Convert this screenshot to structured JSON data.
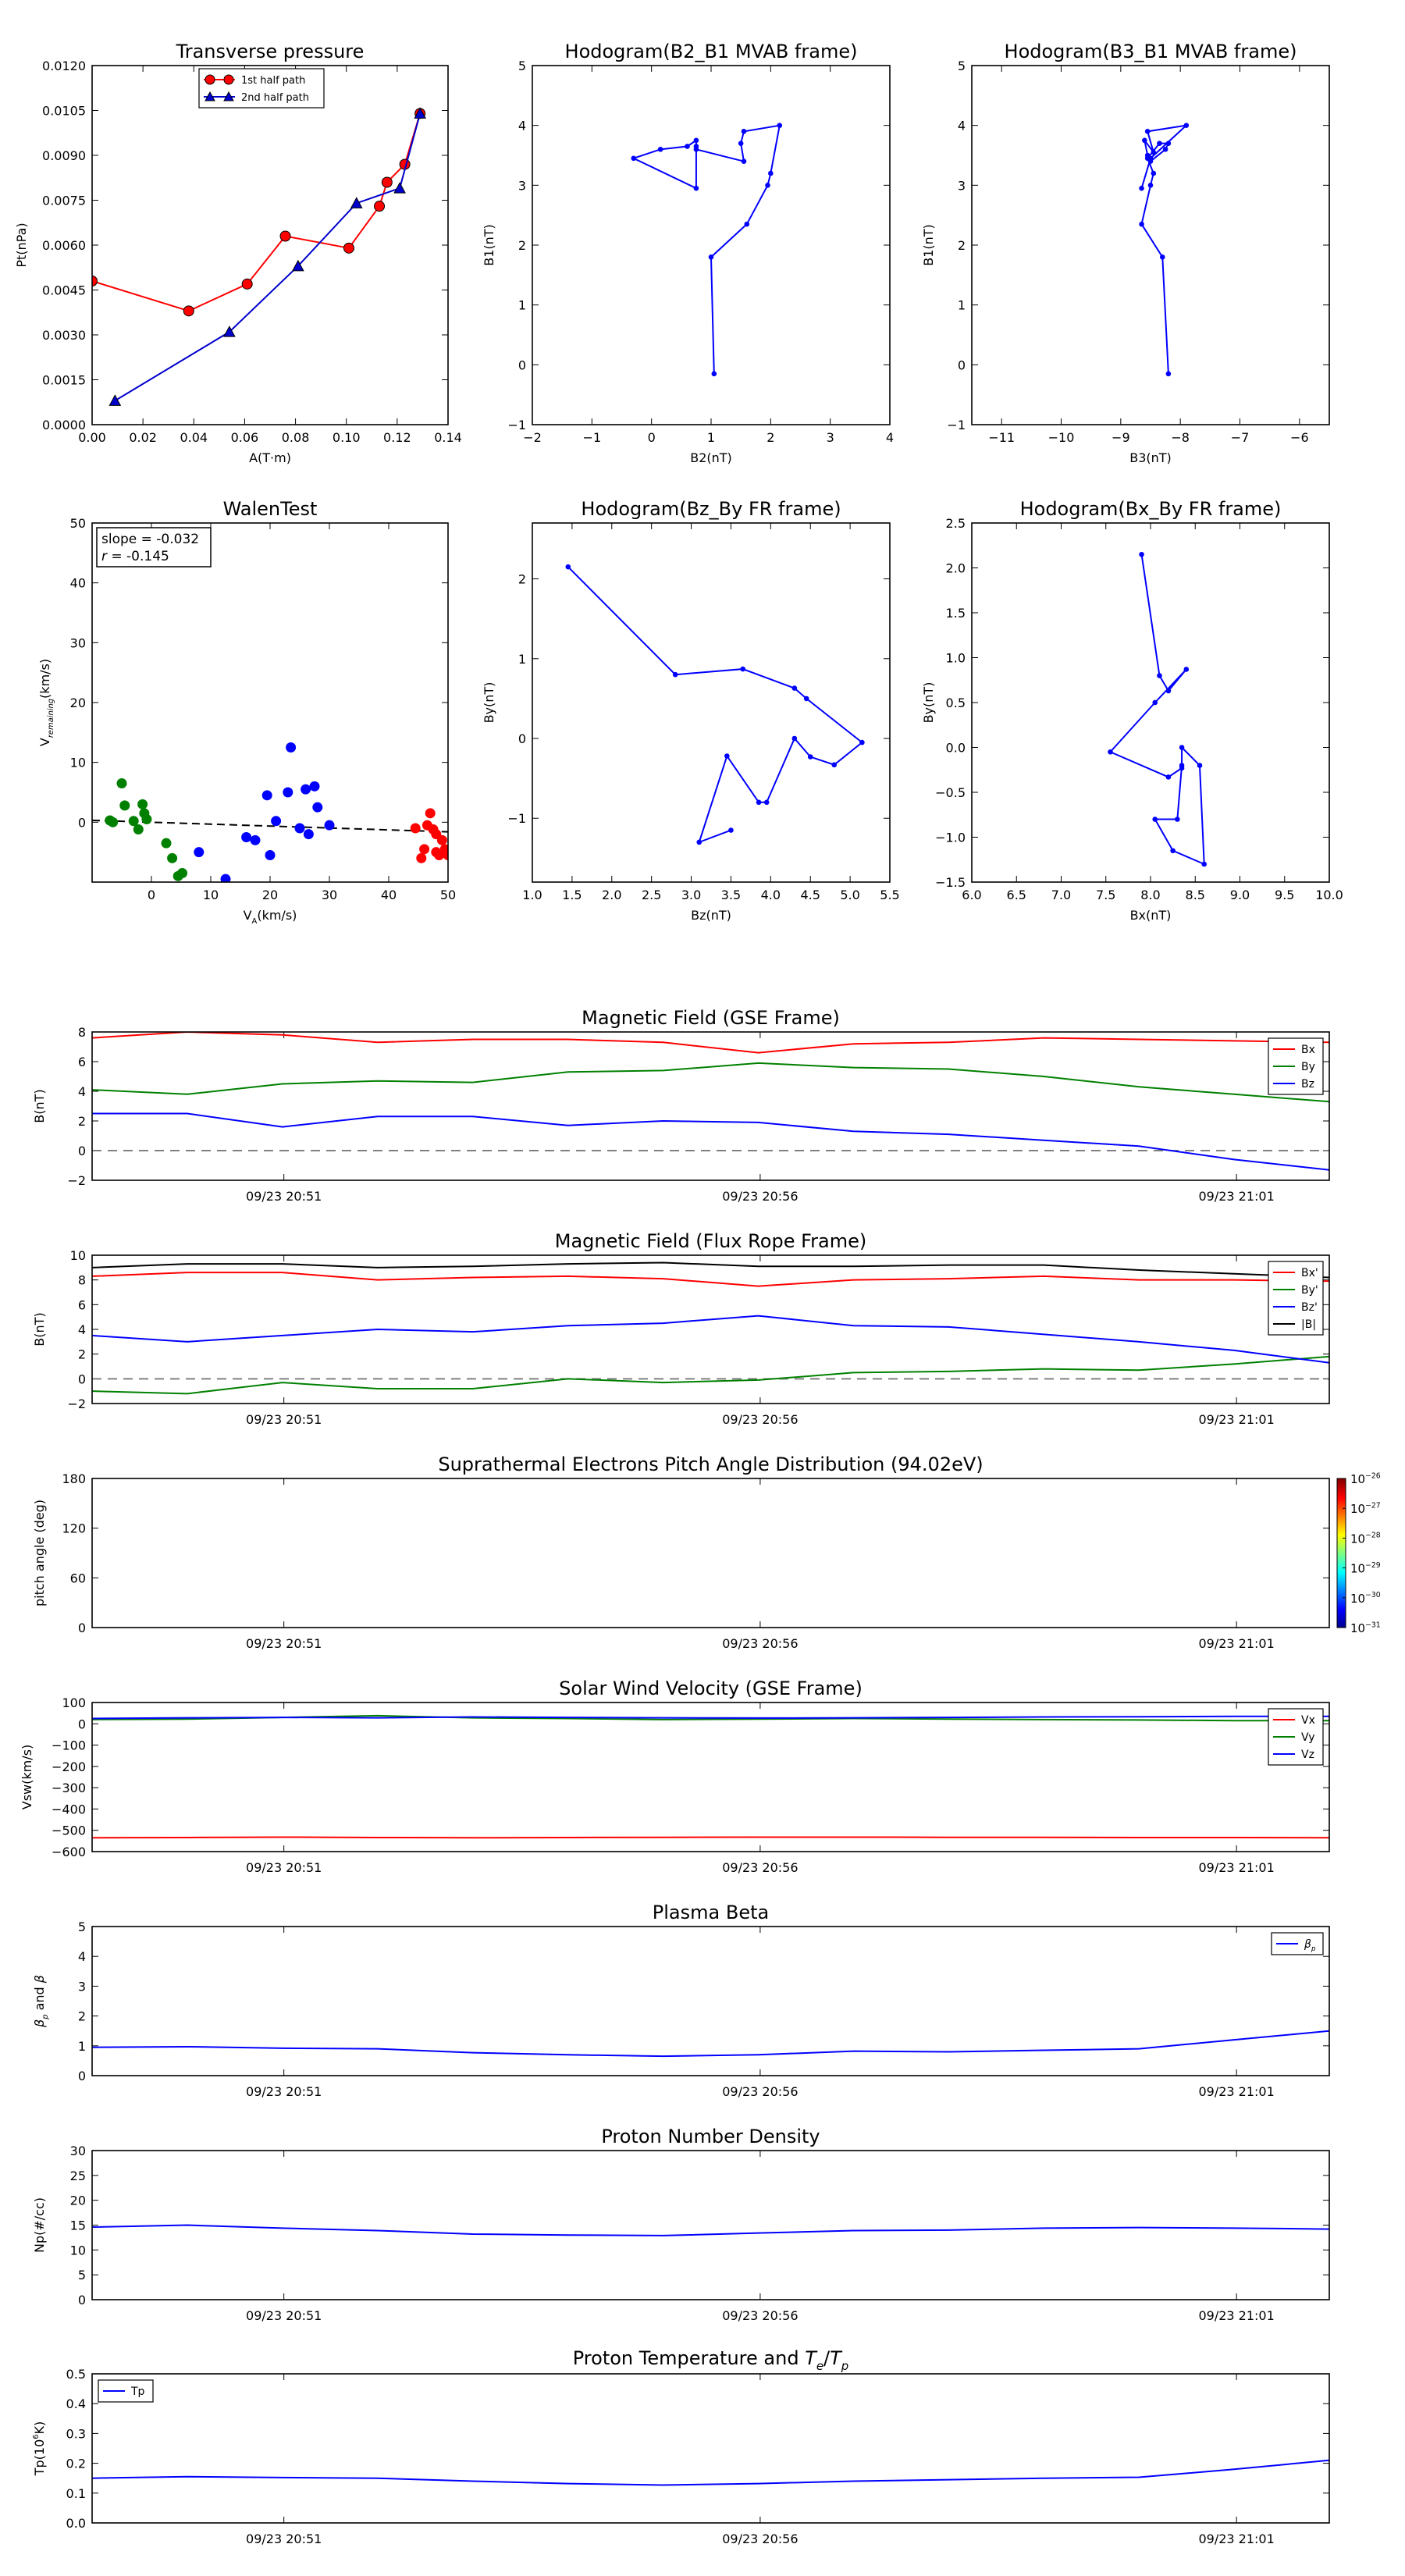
{
  "time_ticks": [
    "09/23 20:51",
    "09/23 20:56",
    "09/23 21:01"
  ],
  "chart_data": [
    {
      "id": "transverse_pressure",
      "type": "line",
      "title": "Transverse pressure",
      "xlabel": "A(T·m)",
      "ylabel": "Pt(nPa)",
      "xlim": [
        0,
        0.14
      ],
      "ylim": [
        0,
        0.012
      ],
      "xticks": [
        "0.00",
        "0.02",
        "0.04",
        "0.06",
        "0.08",
        "0.10",
        "0.12",
        "0.14"
      ],
      "yticks": [
        "0.0000",
        "0.0015",
        "0.0030",
        "0.0045",
        "0.0060",
        "0.0075",
        "0.0090",
        "0.0105",
        "0.0120"
      ],
      "xtick_vals": [
        0,
        0.02,
        0.04,
        0.06,
        0.08,
        0.1,
        0.12,
        0.14
      ],
      "ytick_vals": [
        0,
        0.0015,
        0.003,
        0.0045,
        0.006,
        0.0075,
        0.009,
        0.0105,
        0.012
      ],
      "legend": "top-center",
      "series": [
        {
          "name": "1st half path",
          "color": "#ff0000",
          "marker": "circle",
          "x": [
            0.0,
            0.038,
            0.061,
            0.076,
            0.101,
            0.113,
            0.116,
            0.123,
            0.129
          ],
          "y": [
            0.0048,
            0.0038,
            0.0047,
            0.0063,
            0.0059,
            0.0073,
            0.0081,
            0.0087,
            0.0104
          ]
        },
        {
          "name": "2nd half path",
          "color": "#0000cc",
          "marker": "triangle",
          "x": [
            0.009,
            0.054,
            0.081,
            0.104,
            0.121,
            0.129
          ],
          "y": [
            0.0008,
            0.0031,
            0.0053,
            0.0074,
            0.0079,
            0.0104
          ]
        }
      ]
    },
    {
      "id": "hodo_b2_b1",
      "type": "line",
      "title": "Hodogram(B2_B1 MVAB frame)",
      "xlabel": "B2(nT)",
      "ylabel": "B1(nT)",
      "xlim": [
        -2,
        4
      ],
      "ylim": [
        -1,
        5
      ],
      "xticks": [
        "−2",
        "−1",
        "0",
        "1",
        "2",
        "3",
        "4"
      ],
      "yticks": [
        "−1",
        "0",
        "1",
        "2",
        "3",
        "4",
        "5"
      ],
      "xtick_vals": [
        -2,
        -1,
        0,
        1,
        2,
        3,
        4
      ],
      "ytick_vals": [
        -1,
        0,
        1,
        2,
        3,
        4,
        5
      ],
      "series": [
        {
          "name": "",
          "color": "#0000ff",
          "marker": "dot",
          "x": [
            1.05,
            1.0,
            1.6,
            1.95,
            2.0,
            2.15,
            1.55,
            1.5,
            1.55,
            0.75,
            0.75,
            0.6,
            0.15,
            -0.3,
            0.75,
            0.75
          ],
          "y": [
            -0.15,
            1.8,
            2.35,
            3.0,
            3.2,
            4.0,
            3.9,
            3.7,
            3.4,
            3.6,
            3.75,
            3.65,
            3.6,
            3.45,
            2.95,
            3.65
          ]
        }
      ]
    },
    {
      "id": "hodo_b3_b1",
      "type": "line",
      "title": "Hodogram(B3_B1 MVAB frame)",
      "xlabel": "B3(nT)",
      "ylabel": "B1(nT)",
      "xlim": [
        -11.5,
        -5.5
      ],
      "ylim": [
        -1,
        5
      ],
      "xticks": [
        "−11",
        "−10",
        "−9",
        "−8",
        "−7",
        "−6"
      ],
      "yticks": [
        "−1",
        "0",
        "1",
        "2",
        "3",
        "4",
        "5"
      ],
      "xtick_vals": [
        -11,
        -10,
        -9,
        -8,
        -7,
        -6
      ],
      "ytick_vals": [
        -1,
        0,
        1,
        2,
        3,
        4,
        5
      ],
      "series": [
        {
          "name": "",
          "color": "#0000ff",
          "marker": "dot",
          "x": [
            -8.2,
            -8.3,
            -8.65,
            -8.5,
            -8.45,
            -8.55,
            -8.35,
            -8.2,
            -8.25,
            -8.5,
            -8.55,
            -8.6,
            -8.45,
            -8.55,
            -7.9,
            -8.5,
            -8.65
          ],
          "y": [
            -0.15,
            1.8,
            2.35,
            3.0,
            3.2,
            3.45,
            3.7,
            3.7,
            3.6,
            3.4,
            3.5,
            3.75,
            3.55,
            3.9,
            4.0,
            3.45,
            2.95
          ]
        }
      ]
    },
    {
      "id": "walen_test",
      "type": "scatter",
      "title": "WalenTest",
      "xlabel": "V_A(km/s)",
      "ylabel": "V_remaining(km/s)",
      "xlim": [
        -10,
        50
      ],
      "ylim": [
        -10,
        50
      ],
      "xticks": [
        "0",
        "10",
        "20",
        "30",
        "40",
        "50"
      ],
      "yticks": [
        "0",
        "10",
        "20",
        "30",
        "40",
        "50"
      ],
      "xtick_vals": [
        0,
        10,
        20,
        30,
        40,
        50
      ],
      "ytick_vals": [
        0,
        10,
        20,
        30,
        40,
        50
      ],
      "annotation": [
        "slope = -0.032",
        "r = -0.145"
      ],
      "fit": {
        "slope": -0.032,
        "intercept": 0.0
      },
      "series": [
        {
          "name": "",
          "color": "#008000",
          "x": [
            -7,
            -6.5,
            -5,
            -4.5,
            -3,
            -2.2,
            -1.5,
            -1.2,
            -0.8,
            2.5,
            3.5,
            4.5,
            5.2
          ],
          "y": [
            0.3,
            0,
            6.5,
            2.8,
            0.2,
            -1.2,
            3,
            1.5,
            0.5,
            -3.5,
            -6,
            -9,
            -8.5
          ]
        },
        {
          "name": "",
          "color": "#0000ff",
          "x": [
            8,
            12.5,
            16,
            17.5,
            19.5,
            20,
            21,
            23,
            23.5,
            25,
            26,
            26.5,
            27.5,
            28,
            30
          ],
          "y": [
            -5,
            -9.5,
            -2.5,
            -3,
            4.5,
            -5.5,
            0.2,
            5,
            12.5,
            -1,
            5.5,
            -2,
            6,
            2.5,
            -0.5
          ]
        },
        {
          "name": "",
          "color": "#ff0000",
          "x": [
            44.5,
            45.5,
            46,
            46.5,
            47,
            47.5,
            48,
            48,
            48.5,
            49,
            49.5,
            50
          ],
          "y": [
            -1,
            -6,
            -4.5,
            -0.5,
            1.5,
            -1.2,
            -5,
            -2,
            -5.5,
            -3,
            -4.5,
            -5.5
          ]
        }
      ]
    },
    {
      "id": "hodo_bz_by",
      "type": "line",
      "title": "Hodogram(Bz_By FR frame)",
      "xlabel": "Bz(nT)",
      "ylabel": "By(nT)",
      "xlim": [
        1.0,
        5.5
      ],
      "ylim": [
        -1.8,
        2.7
      ],
      "xticks": [
        "1.0",
        "1.5",
        "2.0",
        "2.5",
        "3.0",
        "3.5",
        "4.0",
        "4.5",
        "5.0",
        "5.5"
      ],
      "yticks": [
        "−1",
        "0",
        "1",
        "2"
      ],
      "xtick_vals": [
        1.0,
        1.5,
        2.0,
        2.5,
        3.0,
        3.5,
        4.0,
        4.5,
        5.0,
        5.5
      ],
      "ytick_vals": [
        -1,
        0,
        1,
        2
      ],
      "series": [
        {
          "name": "",
          "color": "#0000ff",
          "marker": "dot",
          "x": [
            1.45,
            2.8,
            3.65,
            4.3,
            4.45,
            5.15,
            4.8,
            4.5,
            4.3,
            3.95,
            3.85,
            3.45,
            3.1,
            3.5
          ],
          "y": [
            2.15,
            0.8,
            0.87,
            0.63,
            0.5,
            -0.05,
            -0.33,
            -0.23,
            0.0,
            -0.8,
            -0.8,
            -0.22,
            -1.3,
            -1.15
          ]
        }
      ]
    },
    {
      "id": "hodo_bx_by",
      "type": "line",
      "title": "Hodogram(Bx_By FR frame)",
      "xlabel": "Bx(nT)",
      "ylabel": "By(nT)",
      "xlim": [
        6.0,
        10.0
      ],
      "ylim": [
        -1.5,
        2.5
      ],
      "xticks": [
        "6.0",
        "6.5",
        "7.0",
        "7.5",
        "8.0",
        "8.5",
        "9.0",
        "9.5",
        "10.0"
      ],
      "yticks": [
        "−1.5",
        "−1.0",
        "−0.5",
        "0.0",
        "0.5",
        "1.0",
        "1.5",
        "2.0",
        "2.5"
      ],
      "xtick_vals": [
        6.0,
        6.5,
        7.0,
        7.5,
        8.0,
        8.5,
        9.0,
        9.5,
        10.0
      ],
      "ytick_vals": [
        -1.5,
        -1.0,
        -0.5,
        0.0,
        0.5,
        1.0,
        1.5,
        2.0,
        2.5
      ],
      "series": [
        {
          "name": "",
          "color": "#0000ff",
          "marker": "dot",
          "x": [
            7.9,
            8.1,
            8.2,
            8.4,
            8.05,
            7.55,
            8.2,
            8.35,
            8.35,
            8.55,
            8.6,
            8.25,
            8.05,
            8.3,
            8.35
          ],
          "y": [
            2.15,
            0.8,
            0.63,
            0.87,
            0.5,
            -0.05,
            -0.33,
            -0.23,
            0.0,
            -0.2,
            -1.3,
            -1.15,
            -0.8,
            -0.8,
            -0.2
          ]
        }
      ]
    },
    {
      "id": "mag_gse",
      "type": "line",
      "title": "Magnetic Field (GSE Frame)",
      "ylabel": "B(nT)",
      "ylim": [
        -2,
        8
      ],
      "yticks": [
        "−2",
        "0",
        "2",
        "4",
        "6",
        "8"
      ],
      "ytick_vals": [
        -2,
        0,
        2,
        4,
        6,
        8
      ],
      "x": [
        0,
        1,
        2,
        3,
        4,
        5,
        6,
        7,
        8,
        9,
        10,
        11,
        12,
        13
      ],
      "zero_line": true,
      "legend": "top-right",
      "series": [
        {
          "name": "Bx",
          "color": "#ff0000",
          "values": [
            7.6,
            8.0,
            7.8,
            7.3,
            7.5,
            7.5,
            7.3,
            6.6,
            7.2,
            7.3,
            7.6,
            7.5,
            7.4,
            7.3
          ]
        },
        {
          "name": "By",
          "color": "#008000",
          "values": [
            4.1,
            3.8,
            4.5,
            4.7,
            4.6,
            5.3,
            5.4,
            5.9,
            5.6,
            5.5,
            5.0,
            4.3,
            3.8,
            3.3
          ]
        },
        {
          "name": "Bz",
          "color": "#0000ff",
          "values": [
            2.5,
            2.5,
            1.6,
            2.3,
            2.3,
            1.7,
            2.0,
            1.9,
            1.3,
            1.1,
            0.7,
            0.3,
            -0.6,
            -1.3
          ]
        }
      ]
    },
    {
      "id": "mag_fr",
      "type": "line",
      "title": "Magnetic Field (Flux Rope Frame)",
      "ylabel": "B(nT)",
      "ylim": [
        -2,
        10
      ],
      "yticks": [
        "−2",
        "0",
        "2",
        "4",
        "6",
        "8",
        "10"
      ],
      "ytick_vals": [
        -2,
        0,
        2,
        4,
        6,
        8,
        10
      ],
      "x": [
        0,
        1,
        2,
        3,
        4,
        5,
        6,
        7,
        8,
        9,
        10,
        11,
        12,
        13
      ],
      "zero_line": true,
      "legend": "top-right",
      "series": [
        {
          "name": "Bx'",
          "color": "#ff0000",
          "values": [
            8.3,
            8.6,
            8.6,
            8.0,
            8.2,
            8.3,
            8.1,
            7.5,
            8.0,
            8.1,
            8.3,
            8.0,
            8.0,
            7.9
          ]
        },
        {
          "name": "By'",
          "color": "#008000",
          "values": [
            -1.0,
            -1.2,
            -0.3,
            -0.8,
            -0.8,
            0.0,
            -0.3,
            -0.1,
            0.5,
            0.6,
            0.8,
            0.7,
            1.2,
            1.8
          ]
        },
        {
          "name": "Bz'",
          "color": "#0000ff",
          "values": [
            3.5,
            3.0,
            3.5,
            4.0,
            3.8,
            4.3,
            4.5,
            5.1,
            4.3,
            4.2,
            3.6,
            3.0,
            2.3,
            1.3
          ]
        },
        {
          "name": "|B|",
          "color": "#000000",
          "values": [
            9.0,
            9.3,
            9.3,
            9.0,
            9.1,
            9.3,
            9.4,
            9.1,
            9.1,
            9.2,
            9.2,
            8.8,
            8.5,
            8.2
          ]
        }
      ]
    },
    {
      "id": "pitch_angle",
      "type": "heatmap",
      "title": "Suprathermal Electrons Pitch Angle Distribution (94.02eV)",
      "ylabel": "pitch angle (deg)",
      "ylim": [
        0,
        180
      ],
      "yticks": [
        "0",
        "60",
        "120",
        "180"
      ],
      "ytick_vals": [
        0,
        60,
        120,
        180
      ],
      "colorbar_ticks": [
        "26",
        "27",
        "28",
        "29",
        "30",
        "31"
      ],
      "colorbar_base": "10",
      "values": []
    },
    {
      "id": "sw_velocity",
      "type": "line",
      "title": "Solar Wind Velocity (GSE Frame)",
      "ylabel": "Vsw(km/s)",
      "ylim": [
        -600,
        100
      ],
      "yticks": [
        "−600",
        "−500",
        "−400",
        "−300",
        "−200",
        "−100",
        "0",
        "100"
      ],
      "ytick_vals": [
        -600,
        -500,
        -400,
        -300,
        -200,
        -100,
        0,
        100
      ],
      "x": [
        0,
        1,
        2,
        3,
        4,
        5,
        6,
        7,
        8,
        9,
        10,
        11,
        12,
        13
      ],
      "legend": "top-right",
      "series": [
        {
          "name": "Vx",
          "color": "#ff0000",
          "values": [
            -535,
            -534,
            -532,
            -534,
            -535,
            -534,
            -533,
            -532,
            -532,
            -533,
            -533,
            -534,
            -534,
            -535
          ]
        },
        {
          "name": "Vy",
          "color": "#008000",
          "values": [
            20,
            22,
            30,
            38,
            28,
            25,
            20,
            22,
            25,
            22,
            20,
            18,
            15,
            15
          ]
        },
        {
          "name": "Vz",
          "color": "#0000ff",
          "values": [
            25,
            28,
            30,
            28,
            32,
            30,
            28,
            27,
            28,
            30,
            32,
            33,
            35,
            35
          ]
        }
      ]
    },
    {
      "id": "plasma_beta",
      "type": "line",
      "title": "Plasma Beta",
      "ylabel": "β_p and β",
      "ylim": [
        0,
        5
      ],
      "yticks": [
        "0",
        "1",
        "2",
        "3",
        "4",
        "5"
      ],
      "ytick_vals": [
        0,
        1,
        2,
        3,
        4,
        5
      ],
      "x": [
        0,
        1,
        2,
        3,
        4,
        5,
        6,
        7,
        8,
        9,
        10,
        11,
        12,
        13
      ],
      "legend": "top-right",
      "series": [
        {
          "name": "β_p",
          "color": "#0000ff",
          "values": [
            0.95,
            0.97,
            0.92,
            0.9,
            0.77,
            0.7,
            0.65,
            0.7,
            0.82,
            0.8,
            0.85,
            0.9,
            1.2,
            1.5
          ]
        }
      ]
    },
    {
      "id": "proton_density",
      "type": "line",
      "title": "Proton Number Density",
      "ylabel": "Np(#/cc)",
      "ylim": [
        0,
        30
      ],
      "yticks": [
        "0",
        "5",
        "10",
        "15",
        "20",
        "25",
        "30"
      ],
      "ytick_vals": [
        0,
        5,
        10,
        15,
        20,
        25,
        30
      ],
      "x": [
        0,
        1,
        2,
        3,
        4,
        5,
        6,
        7,
        8,
        9,
        10,
        11,
        12,
        13
      ],
      "series": [
        {
          "name": "",
          "color": "#0000ff",
          "values": [
            14.6,
            15.0,
            14.4,
            13.9,
            13.2,
            13.0,
            12.9,
            13.4,
            13.9,
            14.0,
            14.4,
            14.5,
            14.4,
            14.2
          ]
        }
      ]
    },
    {
      "id": "proton_temperature",
      "type": "line",
      "title": "Proton Temperature and T_e/T_p",
      "ylabel": "Tp(10^6 K)",
      "ylim": [
        0,
        0.5
      ],
      "yticks": [
        "0.0",
        "0.1",
        "0.2",
        "0.3",
        "0.4",
        "0.5"
      ],
      "ytick_vals": [
        0,
        0.1,
        0.2,
        0.3,
        0.4,
        0.5
      ],
      "x": [
        0,
        1,
        2,
        3,
        4,
        5,
        6,
        7,
        8,
        9,
        10,
        11,
        12,
        13
      ],
      "legend": "top-left",
      "series": [
        {
          "name": "Tp",
          "color": "#0000ff",
          "values": [
            0.15,
            0.155,
            0.152,
            0.15,
            0.14,
            0.132,
            0.127,
            0.132,
            0.14,
            0.145,
            0.15,
            0.153,
            0.18,
            0.21
          ]
        }
      ]
    }
  ]
}
